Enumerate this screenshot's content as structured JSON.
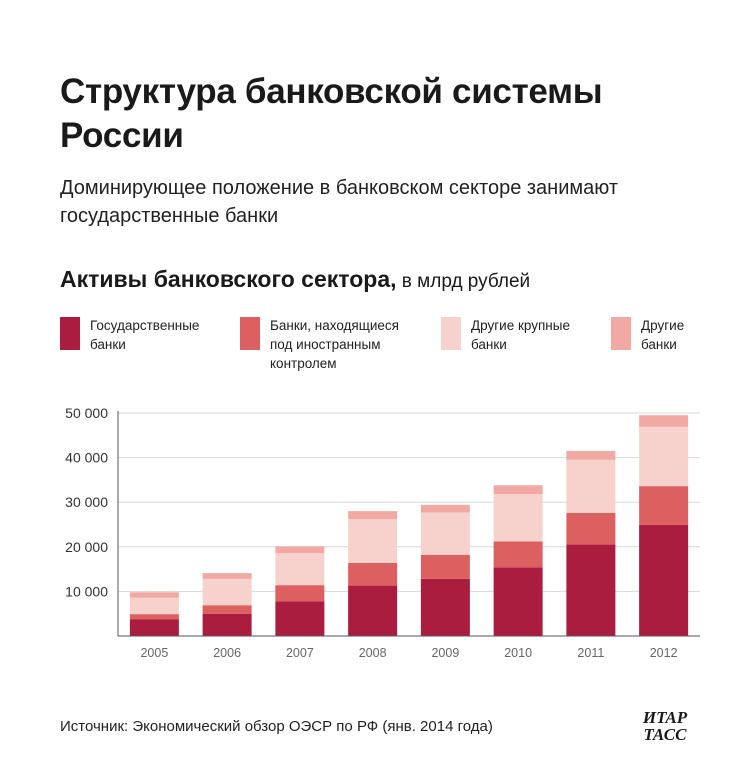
{
  "title": "Структура банковской системы России",
  "subtitle": "Доминирующее положение в банковском секторе занимают государственные банки",
  "section": {
    "title_bold": "Активы банковского сектора,",
    "title_unit": " в млрд рублей"
  },
  "legend": [
    {
      "label": "Государственные банки",
      "color": "#aa1d3f"
    },
    {
      "label": "Банки, находящиеся под иностранным контролем",
      "color": "#dd6060"
    },
    {
      "label": "Другие крупные банки",
      "color": "#f7d2cc"
    },
    {
      "label": "Другие банки",
      "color": "#f2a9a4"
    }
  ],
  "chart_data": {
    "type": "bar",
    "stacked": true,
    "categories": [
      "2005",
      "2006",
      "2007",
      "2008",
      "2009",
      "2010",
      "2011",
      "2012"
    ],
    "series": [
      {
        "name": "Государственные банки",
        "color": "#aa1d3f",
        "values": [
          3700,
          5000,
          7800,
          11300,
          12800,
          15400,
          20500,
          24900
        ]
      },
      {
        "name": "Банки, находящиеся под иностранным контролем",
        "color": "#dd6060",
        "values": [
          1200,
          1900,
          3600,
          5100,
          5400,
          5800,
          7100,
          8700
        ]
      },
      {
        "name": "Другие крупные банки",
        "color": "#f7d2cc",
        "values": [
          3700,
          5900,
          7200,
          9800,
          9500,
          10600,
          11900,
          13300
        ]
      },
      {
        "name": "Другие банки",
        "color": "#f2a9a4",
        "values": [
          1200,
          1300,
          1500,
          1800,
          1700,
          2000,
          2000,
          2600
        ]
      }
    ],
    "yticks": [
      10000,
      20000,
      30000,
      40000,
      50000
    ],
    "ytick_labels": [
      "10 000",
      "20 000",
      "30 000",
      "40 000",
      "50 000"
    ],
    "ylim": [
      0,
      50000
    ],
    "grid": true,
    "legend_position": "top"
  },
  "source": "Источник: Экономический обзор ОЭСР по РФ (янв. 2014 года)",
  "logo": {
    "line1": "ИТАР",
    "line2": "ТАСС"
  }
}
